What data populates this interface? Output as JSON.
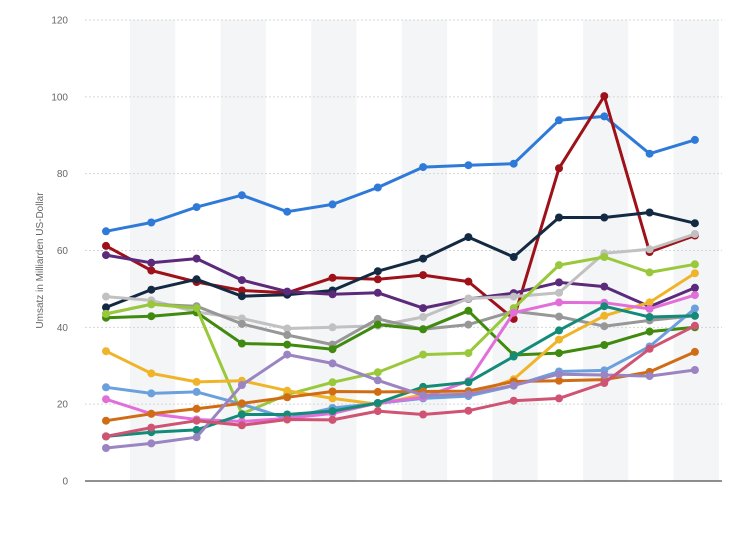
{
  "chart_data": {
    "type": "line",
    "title": "",
    "xlabel": "",
    "ylabel": "Umsatz in Milliarden US-Dollar",
    "ylim": [
      0,
      120
    ],
    "yticks": [
      0,
      20,
      40,
      60,
      80,
      100,
      120
    ],
    "x": [
      1,
      2,
      3,
      4,
      5,
      6,
      7,
      8,
      9,
      10,
      11,
      12,
      13,
      14
    ],
    "grid": "horizontal, dashed",
    "legend": "none",
    "series": [
      {
        "color": "#2f7ad9",
        "values": [
          65.0,
          67.3,
          71.3,
          74.4,
          70.1,
          72.0,
          76.4,
          81.7,
          82.2,
          82.6,
          93.9,
          94.9,
          85.2,
          88.8
        ]
      },
      {
        "color": "#9e1119",
        "values": [
          61.2,
          54.8,
          51.8,
          49.6,
          49.0,
          52.9,
          52.5,
          53.6,
          51.9,
          42.2,
          81.4,
          100.2,
          59.6,
          63.9
        ]
      },
      {
        "color": "#132a42",
        "values": [
          45.2,
          49.8,
          52.5,
          48.1,
          48.5,
          49.6,
          54.6,
          57.9,
          63.5,
          58.3,
          68.6,
          68.6,
          69.9,
          67.1
        ]
      },
      {
        "color": "#5c2a7a",
        "values": [
          58.8,
          56.8,
          57.9,
          52.3,
          49.3,
          48.6,
          49.0,
          45.0,
          47.4,
          48.9,
          51.7,
          50.6,
          45.4,
          50.3
        ]
      },
      {
        "color": "#c1c1c1",
        "values": [
          48.0,
          47.0,
          44.0,
          42.3,
          39.7,
          40.0,
          40.4,
          42.7,
          47.5,
          48.0,
          49.0,
          59.3,
          60.3,
          64.3
        ]
      },
      {
        "color": "#979797",
        "values": [
          43.5,
          46.0,
          45.5,
          40.9,
          38.0,
          35.5,
          42.2,
          39.5,
          40.7,
          44.2,
          42.8,
          40.3,
          41.8,
          43.0
        ]
      },
      {
        "color": "#3f8a0f",
        "values": [
          42.5,
          42.9,
          43.9,
          35.8,
          35.5,
          34.3,
          40.7,
          39.5,
          44.3,
          32.8,
          33.3,
          35.4,
          38.9,
          40.0
        ]
      },
      {
        "color": "#9ac83b",
        "values": [
          43.5,
          46.0,
          45.0,
          17.5,
          22.5,
          25.7,
          28.3,
          32.9,
          33.3,
          45.0,
          56.2,
          58.3,
          54.3,
          56.4
        ]
      },
      {
        "color": "#f0b429",
        "values": [
          33.8,
          28.0,
          25.8,
          26.1,
          23.5,
          21.5,
          20.0,
          22.5,
          22.3,
          26.5,
          36.8,
          43.0,
          46.5,
          54.1
        ]
      },
      {
        "color": "#6ca0dc",
        "values": [
          24.4,
          22.8,
          23.2,
          20.0,
          16.3,
          19.0,
          20.2,
          21.5,
          22.1,
          24.8,
          28.5,
          28.8,
          35.0,
          44.9
        ]
      },
      {
        "color": "#e26fd9",
        "values": [
          21.3,
          17.5,
          16.0,
          15.5,
          16.3,
          17.6,
          20.3,
          21.8,
          26.0,
          43.8,
          46.5,
          46.4,
          44.8,
          48.4
        ]
      },
      {
        "color": "#138b78",
        "values": [
          11.6,
          12.7,
          13.3,
          17.3,
          17.3,
          18.2,
          20.3,
          24.5,
          25.7,
          32.4,
          39.2,
          45.5,
          42.7,
          43.0
        ]
      },
      {
        "color": "#d06c14",
        "values": [
          15.7,
          17.5,
          18.8,
          20.2,
          21.8,
          23.3,
          23.2,
          23.3,
          23.4,
          25.9,
          26.1,
          26.4,
          28.4,
          33.6
        ]
      },
      {
        "color": "#9a84c2",
        "values": [
          8.6,
          9.8,
          11.4,
          25.0,
          32.9,
          30.6,
          26.2,
          22.3,
          22.6,
          24.9,
          27.8,
          27.6,
          27.3,
          28.9
        ]
      },
      {
        "color": "#cf5473",
        "values": [
          11.6,
          13.9,
          15.7,
          14.5,
          16.0,
          15.9,
          18.2,
          17.3,
          18.3,
          20.9,
          21.5,
          25.5,
          34.4,
          40.4
        ]
      }
    ]
  }
}
